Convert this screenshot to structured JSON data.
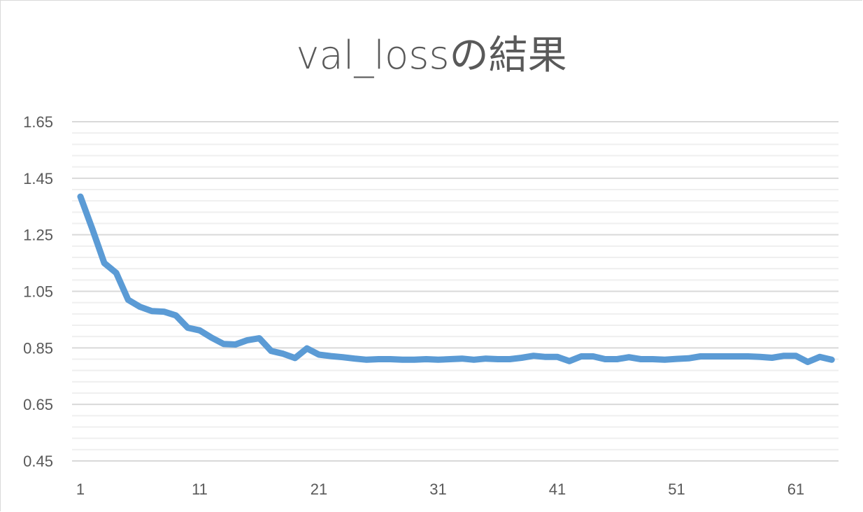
{
  "chart_data": {
    "type": "line",
    "title": "val_lossの結果",
    "xlabel": "",
    "ylabel": "",
    "ylim": [
      0.45,
      1.65
    ],
    "y_ticks": [
      "0.45",
      "0.65",
      "0.85",
      "1.05",
      "1.25",
      "1.45",
      "1.65"
    ],
    "x_ticks": [
      "1",
      "11",
      "21",
      "31",
      "41",
      "51",
      "61"
    ],
    "grid": "on",
    "legend": "none",
    "series": [
      {
        "color": "#5b9bd5",
        "x": [
          1,
          2,
          3,
          4,
          5,
          6,
          7,
          8,
          9,
          10,
          11,
          12,
          13,
          14,
          15,
          16,
          17,
          18,
          19,
          20,
          21,
          22,
          23,
          24,
          25,
          26,
          27,
          28,
          29,
          30,
          31,
          32,
          33,
          34,
          35,
          36,
          37,
          38,
          39,
          40,
          41,
          42,
          43,
          44,
          45,
          46,
          47,
          48,
          49,
          50,
          51,
          52,
          53,
          54,
          55,
          56,
          57,
          58,
          59,
          60,
          61,
          62,
          63,
          64
        ],
        "values": [
          1.385,
          1.27,
          1.15,
          1.115,
          1.02,
          0.995,
          0.98,
          0.978,
          0.965,
          0.921,
          0.912,
          0.886,
          0.864,
          0.862,
          0.877,
          0.884,
          0.839,
          0.829,
          0.814,
          0.848,
          0.826,
          0.821,
          0.817,
          0.812,
          0.808,
          0.81,
          0.81,
          0.808,
          0.808,
          0.81,
          0.808,
          0.81,
          0.812,
          0.808,
          0.812,
          0.81,
          0.81,
          0.815,
          0.822,
          0.818,
          0.818,
          0.803,
          0.82,
          0.82,
          0.81,
          0.81,
          0.817,
          0.81,
          0.81,
          0.808,
          0.811,
          0.813,
          0.82,
          0.82,
          0.82,
          0.82,
          0.82,
          0.818,
          0.815,
          0.822,
          0.822,
          0.8,
          0.818,
          0.808
        ]
      }
    ]
  }
}
